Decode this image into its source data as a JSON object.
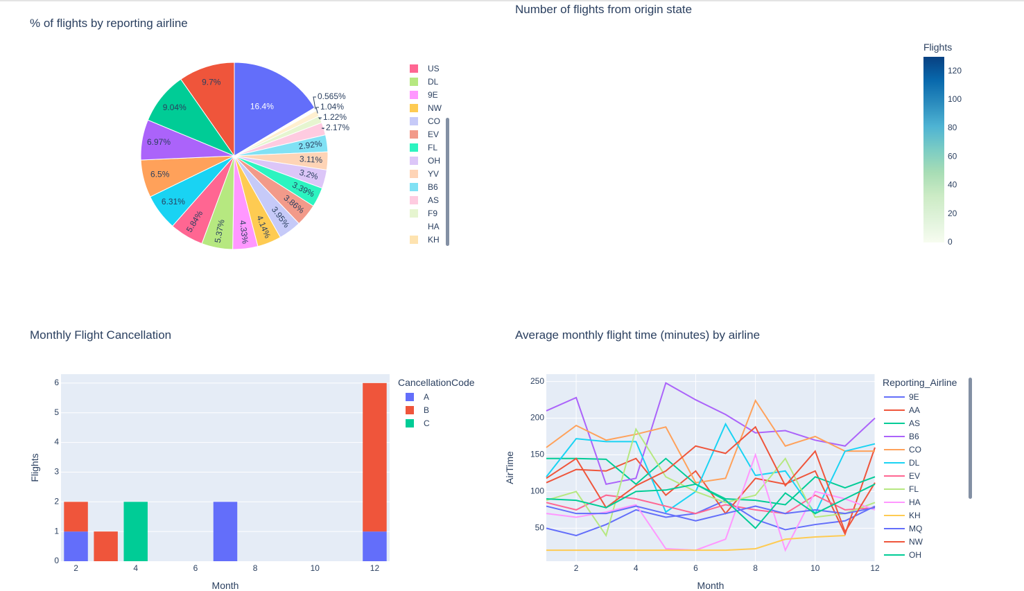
{
  "chart_data": [
    {
      "type": "pie",
      "title": "% of flights by reporting airline",
      "slices": [
        {
          "label": "",
          "value": 16.4,
          "color": "#636efa",
          "text": "16.4%"
        },
        {
          "label": "",
          "value": 0.565,
          "color": "#ffffff",
          "text": "0.565%"
        },
        {
          "label": "",
          "value": 1.04,
          "color": "#fff0d0",
          "text": "1.04%"
        },
        {
          "label": "F9",
          "value": 1.22,
          "color": "#e6f5d0",
          "text": "1.22%"
        },
        {
          "label": "AS",
          "value": 2.17,
          "color": "#fecbe0",
          "text": "2.17%"
        },
        {
          "label": "B6",
          "value": 2.92,
          "color": "#80e1f4",
          "text": "2.92%"
        },
        {
          "label": "YV",
          "value": 3.11,
          "color": "#fed4b6",
          "text": "3.11%"
        },
        {
          "label": "OH",
          "value": 3.2,
          "color": "#dcc6f8",
          "text": "3.2%"
        },
        {
          "label": "FL",
          "value": 3.39,
          "color": "#2cf4c0",
          "text": "3.39%"
        },
        {
          "label": "EV",
          "value": 3.86,
          "color": "#f29a8a",
          "text": "3.86%"
        },
        {
          "label": "CO",
          "value": 3.95,
          "color": "#c6caf8",
          "text": "3.95%"
        },
        {
          "label": "NW",
          "value": 4.14,
          "color": "#fecb52",
          "text": "4.14%"
        },
        {
          "label": "9E",
          "value": 4.33,
          "color": "#ff97ff",
          "text": "4.33%"
        },
        {
          "label": "DL",
          "value": 5.37,
          "color": "#b6e880",
          "text": "5.37%"
        },
        {
          "label": "US",
          "value": 5.84,
          "color": "#ff6692",
          "text": "5.84%"
        },
        {
          "label": "",
          "value": 6.31,
          "color": "#19d3f3",
          "text": "6.31%"
        },
        {
          "label": "",
          "value": 6.5,
          "color": "#ffa15a",
          "text": "6.5%"
        },
        {
          "label": "",
          "value": 6.97,
          "color": "#ab63fa",
          "text": "6.97%"
        },
        {
          "label": "",
          "value": 9.04,
          "color": "#00cc96",
          "text": "9.04%"
        },
        {
          "label": "",
          "value": 9.7,
          "color": "#ef553b",
          "text": "9.7%"
        }
      ],
      "legend": [
        {
          "label": "US",
          "color": "#ff6692"
        },
        {
          "label": "DL",
          "color": "#b6e880"
        },
        {
          "label": "9E",
          "color": "#ff97ff"
        },
        {
          "label": "NW",
          "color": "#fecb52"
        },
        {
          "label": "CO",
          "color": "#c6caf8"
        },
        {
          "label": "EV",
          "color": "#f29a8a"
        },
        {
          "label": "FL",
          "color": "#2cf4c0"
        },
        {
          "label": "OH",
          "color": "#dcc6f8"
        },
        {
          "label": "YV",
          "color": "#fed4b6"
        },
        {
          "label": "B6",
          "color": "#80e1f4"
        },
        {
          "label": "AS",
          "color": "#fecbe0"
        },
        {
          "label": "F9",
          "color": "#e6f5d0"
        },
        {
          "label": "HA",
          "color": "#ffffff"
        },
        {
          "label": "KH",
          "color": "#fee3b0"
        }
      ]
    },
    {
      "type": "heatmap",
      "title": "Number of flights from origin state",
      "colorbar": {
        "title": "Flights",
        "range": [
          0,
          130
        ],
        "ticks": [
          "0",
          "20",
          "40",
          "60",
          "80",
          "100",
          "120"
        ],
        "tick_values": [
          0,
          20,
          40,
          60,
          80,
          100,
          120
        ],
        "colorscale": [
          "#f7fcf0",
          "#e0f3db",
          "#ccebc5",
          "#a8ddb5",
          "#7bccc4",
          "#4eb3d3",
          "#2b8cbe",
          "#0868ac",
          "#084081"
        ]
      }
    },
    {
      "type": "bar",
      "title": "Monthly Flight Cancellation",
      "xlabel": "Month",
      "ylabel": "Flights",
      "xlim": [
        1.5,
        12.5
      ],
      "ylim": [
        0,
        6.3
      ],
      "xticks": [
        2,
        4,
        6,
        8,
        10,
        12
      ],
      "yticks": [
        0,
        1,
        2,
        3,
        4,
        5,
        6
      ],
      "legend_title": "CancellationCode",
      "series": [
        {
          "name": "A",
          "color": "#636efa",
          "x": [
            2,
            7,
            12
          ],
          "values": [
            1,
            2,
            1
          ]
        },
        {
          "name": "B",
          "color": "#ef553b",
          "x": [
            2,
            3,
            12
          ],
          "values": [
            1,
            1,
            5
          ]
        },
        {
          "name": "C",
          "color": "#00cc96",
          "x": [
            4
          ],
          "values": [
            2
          ]
        }
      ]
    },
    {
      "type": "line",
      "title": "Average monthly flight time (minutes) by airline",
      "xlabel": "Month",
      "ylabel": "AirTime",
      "xlim": [
        1,
        12
      ],
      "ylim": [
        5,
        260
      ],
      "xticks": [
        2,
        4,
        6,
        8,
        10,
        12
      ],
      "yticks": [
        50,
        100,
        150,
        200,
        250
      ],
      "legend_title": "Reporting_Airline",
      "series": [
        {
          "name": "9E",
          "color": "#636efa",
          "x": [
            1,
            2,
            3,
            4,
            5,
            6,
            7,
            8,
            9,
            10,
            11,
            12
          ],
          "y": [
            50,
            40,
            55,
            75,
            65,
            70,
            88,
            62,
            48,
            55,
            60,
            80
          ]
        },
        {
          "name": "AA",
          "color": "#ef553b",
          "x": [
            1,
            2,
            3,
            4,
            5,
            6,
            7,
            8,
            9,
            10,
            11,
            12
          ],
          "y": [
            112,
            130,
            128,
            145,
            95,
            128,
            70,
            118,
            110,
            128,
            42,
            160
          ]
        },
        {
          "name": "AS",
          "color": "#00cc96",
          "x": [
            1,
            2,
            3,
            4,
            5,
            6,
            7,
            8,
            9,
            10,
            11,
            12
          ],
          "y": [
            145,
            145,
            144,
            110,
            145,
            110,
            90,
            88,
            82,
            120,
            105,
            120
          ]
        },
        {
          "name": "B6",
          "color": "#ab63fa",
          "x": [
            1,
            2,
            3,
            4,
            5,
            6,
            7,
            8,
            9,
            10,
            11,
            12
          ],
          "y": [
            210,
            228,
            110,
            118,
            248,
            225,
            205,
            180,
            183,
            170,
            162,
            200
          ]
        },
        {
          "name": "CO",
          "color": "#ffa15a",
          "x": [
            1,
            2,
            3,
            4,
            5,
            6,
            7,
            8,
            9,
            10,
            11,
            12
          ],
          "y": [
            160,
            190,
            170,
            178,
            188,
            112,
            118,
            224,
            162,
            175,
            155,
            155
          ]
        },
        {
          "name": "DL",
          "color": "#19d3f3",
          "x": [
            1,
            2,
            3,
            4,
            5,
            6,
            7,
            8,
            9,
            10,
            11,
            12
          ],
          "y": [
            120,
            172,
            168,
            168,
            72,
            100,
            192,
            122,
            128,
            70,
            155,
            165
          ]
        },
        {
          "name": "EV",
          "color": "#ff6692",
          "x": [
            1,
            2,
            3,
            4,
            5,
            6,
            7,
            8,
            9,
            10,
            11,
            12
          ],
          "y": [
            85,
            75,
            95,
            90,
            80,
            70,
            82,
            75,
            70,
            95,
            75,
            78
          ]
        },
        {
          "name": "FL",
          "color": "#b6e880",
          "x": [
            1,
            2,
            3,
            4,
            5,
            6,
            7,
            8,
            9,
            10,
            11,
            12
          ],
          "y": [
            88,
            100,
            40,
            185,
            120,
            100,
            85,
            95,
            145,
            65,
            70,
            85
          ]
        },
        {
          "name": "HA",
          "color": "#ff97ff",
          "x": [
            1,
            2,
            3,
            4,
            5,
            6,
            7,
            8,
            9,
            10,
            11,
            12
          ],
          "y": [
            70,
            65,
            72,
            82,
            22,
            20,
            35,
            150,
            20,
            100,
            90,
            75
          ]
        },
        {
          "name": "KH",
          "color": "#fecb52",
          "x": [
            1,
            2,
            3,
            4,
            5,
            6,
            7,
            8,
            9,
            10,
            11,
            12
          ],
          "y": [
            20,
            20,
            20,
            20,
            20,
            20,
            20,
            22,
            35,
            38,
            40,
            null
          ]
        },
        {
          "name": "MQ",
          "color": "#636efa",
          "x": [
            1,
            2,
            3,
            4,
            5,
            6,
            7,
            8,
            9,
            10,
            11,
            12
          ],
          "y": [
            80,
            70,
            70,
            80,
            70,
            60,
            70,
            80,
            70,
            75,
            70,
            78
          ]
        },
        {
          "name": "NW",
          "color": "#ef553b",
          "x": [
            1,
            2,
            3,
            4,
            5,
            6,
            7,
            8,
            9,
            10,
            11,
            12
          ],
          "y": [
            118,
            145,
            78,
            108,
            128,
            162,
            152,
            188,
            108,
            155,
            45,
            112
          ]
        },
        {
          "name": "OH",
          "color": "#00cc96",
          "x": [
            1,
            2,
            3,
            4,
            5,
            6,
            7,
            8,
            9,
            10,
            11,
            12
          ],
          "y": [
            90,
            88,
            78,
            100,
            102,
            110,
            88,
            50,
            98,
            70,
            90,
            110
          ]
        }
      ]
    }
  ]
}
